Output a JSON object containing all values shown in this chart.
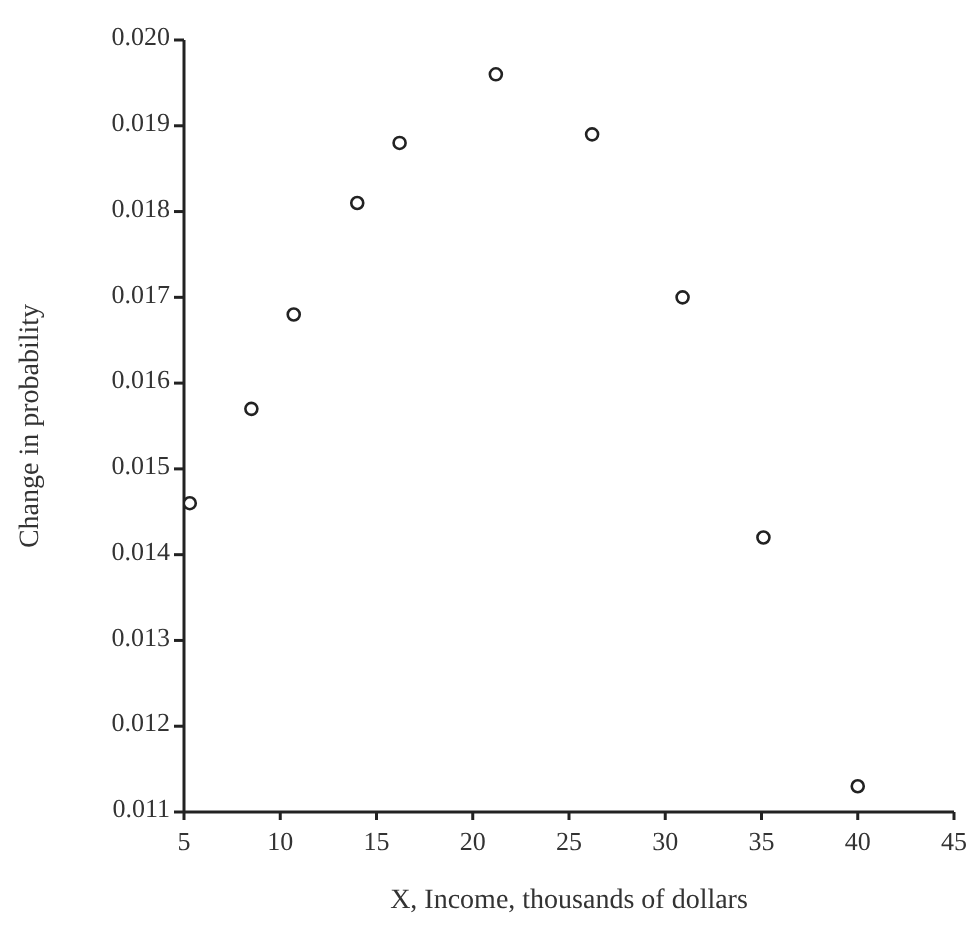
{
  "chart_data": {
    "type": "scatter",
    "xlabel": "X, Income, thousands of dollars",
    "ylabel": "Change in probability",
    "x": [
      5.3,
      8.5,
      10.7,
      14.0,
      16.2,
      21.2,
      26.2,
      30.9,
      35.1,
      40.0
    ],
    "values": [
      0.0146,
      0.0157,
      0.0168,
      0.0181,
      0.0188,
      0.0196,
      0.0189,
      0.017,
      0.0142,
      0.0113
    ],
    "color": "#222222",
    "marker": "circle",
    "grid": false,
    "xlim": [
      5,
      45
    ],
    "xticks": [
      5,
      10,
      15,
      20,
      25,
      30,
      35,
      40,
      45
    ],
    "ylim": [
      0.011,
      0.02
    ],
    "yticks": [
      0.011,
      0.012,
      0.013,
      0.014,
      0.015,
      0.016,
      0.017,
      0.018,
      0.019,
      {
        "value": 0.02,
        "label": "0.020"
      }
    ]
  }
}
